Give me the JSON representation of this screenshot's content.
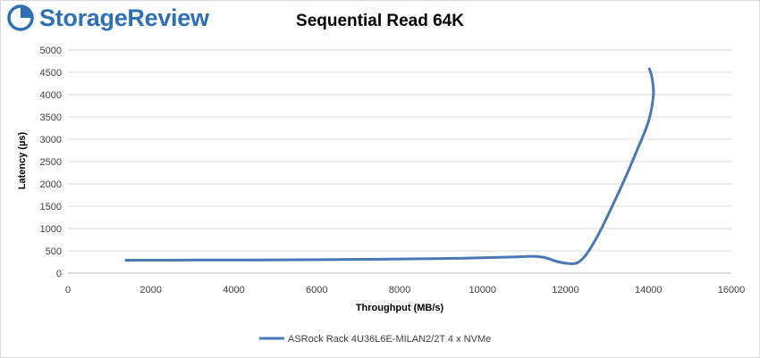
{
  "brand": {
    "logo_text": "StorageReview",
    "accent": "#2f6fb6"
  },
  "chart_data": {
    "type": "line",
    "title": "Sequential Read 64K",
    "xlabel": "Throughput (MB/s)",
    "ylabel": "Latency (µs)",
    "xlim": [
      0,
      16000
    ],
    "ylim": [
      0,
      5000
    ],
    "xticks": [
      0,
      2000,
      4000,
      6000,
      8000,
      10000,
      12000,
      14000,
      16000
    ],
    "yticks": [
      0,
      500,
      1000,
      1500,
      2000,
      2500,
      3000,
      3500,
      4000,
      4500,
      5000
    ],
    "grid": "horizontal",
    "legend_position": "bottom",
    "series": [
      {
        "name": "ASRock Rack 4U36L6E-MILAN2/2T 4 x NVMe",
        "color": "#4a78b5",
        "points": [
          [
            1400,
            290
          ],
          [
            2000,
            292
          ],
          [
            3000,
            294
          ],
          [
            4000,
            295
          ],
          [
            5000,
            298
          ],
          [
            6000,
            303
          ],
          [
            7000,
            310
          ],
          [
            8000,
            318
          ],
          [
            9000,
            328
          ],
          [
            10000,
            345
          ],
          [
            10800,
            365
          ],
          [
            11200,
            378
          ],
          [
            11500,
            350
          ],
          [
            11800,
            260
          ],
          [
            12100,
            215
          ],
          [
            12300,
            240
          ],
          [
            12500,
            420
          ],
          [
            12800,
            880
          ],
          [
            13100,
            1450
          ],
          [
            13400,
            2050
          ],
          [
            13700,
            2700
          ],
          [
            14000,
            3400
          ],
          [
            14120,
            4000
          ],
          [
            14080,
            4400
          ],
          [
            14020,
            4580
          ]
        ]
      }
    ]
  }
}
